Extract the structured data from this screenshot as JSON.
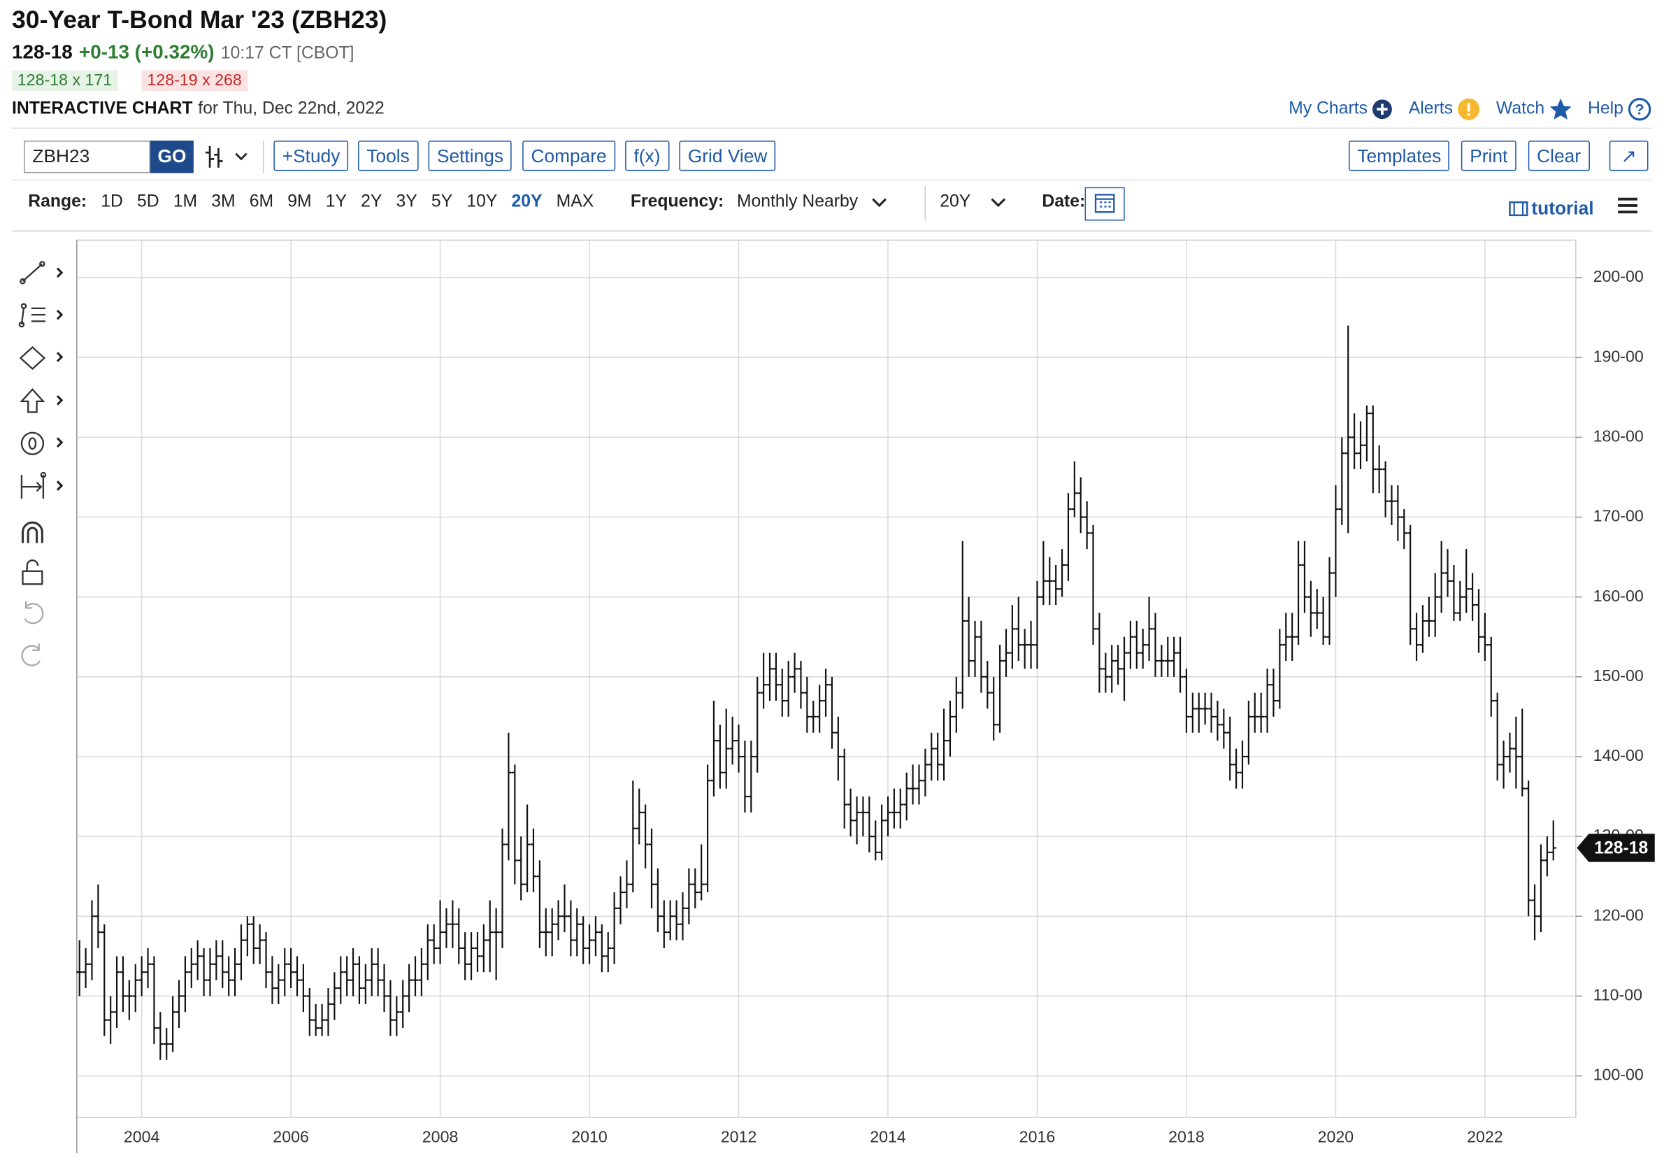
{
  "header": {
    "title": "30-Year T-Bond Mar '23 (ZBH23)",
    "last": "128-18",
    "change": "+0-13 (+0.32%)",
    "time": "10:17 CT [CBOT]",
    "bid": "128-18 x 171",
    "ask": "128-19 x 268",
    "chart_label": "INTERACTIVE CHART",
    "chart_date": "for Thu, Dec 22nd, 2022"
  },
  "links": [
    "My Charts",
    "Alerts",
    "Watch",
    "Help"
  ],
  "toolbar": {
    "symbol": "ZBH23",
    "go": "GO",
    "left_buttons": [
      "+Study",
      "Tools",
      "Settings",
      "Compare",
      "f(x)",
      "Grid View"
    ],
    "right_buttons": [
      "Templates",
      "Print",
      "Clear"
    ]
  },
  "range_bar": {
    "range_label": "Range:",
    "ranges": [
      "1D",
      "5D",
      "1M",
      "3M",
      "6M",
      "9M",
      "1Y",
      "2Y",
      "3Y",
      "5Y",
      "10Y",
      "20Y",
      "MAX"
    ],
    "active_range": "20Y",
    "frequency_label": "Frequency:",
    "frequency": "Monthly Nearby",
    "period": "20Y",
    "date_label": "Date:",
    "tutorial": "tutorial"
  },
  "chart_data": {
    "type": "ohlc",
    "color": "#111111",
    "grid": true,
    "ylim": [
      94.8,
      204.7
    ],
    "yticks": [
      {
        "value": 100,
        "label": "100-00"
      },
      {
        "value": 110,
        "label": "110-00"
      },
      {
        "value": 120,
        "label": "120-00"
      },
      {
        "value": 130,
        "label": "130-00"
      },
      {
        "value": 140,
        "label": "140-00"
      },
      {
        "value": 150,
        "label": "150-00"
      },
      {
        "value": 160,
        "label": "160-00"
      },
      {
        "value": 170,
        "label": "170-00"
      },
      {
        "value": 180,
        "label": "180-00"
      },
      {
        "value": 190,
        "label": "190-00"
      },
      {
        "value": 200,
        "label": "200-00"
      }
    ],
    "last_label": "128-18",
    "categories": [
      null,
      null,
      null,
      null,
      null,
      null,
      null,
      null,
      null,
      null,
      "2004",
      null,
      null,
      null,
      null,
      null,
      null,
      null,
      null,
      null,
      null,
      null,
      null,
      null,
      null,
      null,
      null,
      null,
      null,
      null,
      null,
      null,
      null,
      null,
      "2006",
      null,
      null,
      null,
      null,
      null,
      null,
      null,
      null,
      null,
      null,
      null,
      null,
      null,
      null,
      null,
      null,
      null,
      null,
      null,
      null,
      null,
      null,
      null,
      "2008",
      null,
      null,
      null,
      null,
      null,
      null,
      null,
      null,
      null,
      null,
      null,
      null,
      null,
      null,
      null,
      null,
      null,
      null,
      null,
      null,
      null,
      null,
      null,
      "2010",
      null,
      null,
      null,
      null,
      null,
      null,
      null,
      null,
      null,
      null,
      null,
      null,
      null,
      null,
      null,
      null,
      null,
      null,
      null,
      null,
      null,
      null,
      null,
      "2012",
      null,
      null,
      null,
      null,
      null,
      null,
      null,
      null,
      null,
      null,
      null,
      null,
      null,
      null,
      null,
      null,
      null,
      null,
      null,
      null,
      null,
      null,
      null,
      "2014",
      null,
      null,
      null,
      null,
      null,
      null,
      null,
      null,
      null,
      null,
      null,
      null,
      null,
      null,
      null,
      null,
      null,
      null,
      null,
      null,
      null,
      null,
      null,
      "2016",
      null,
      null,
      null,
      null,
      null,
      null,
      null,
      null,
      null,
      null,
      null,
      null,
      null,
      null,
      null,
      null,
      null,
      null,
      null,
      null,
      null,
      null,
      null,
      "2018",
      null,
      null,
      null,
      null,
      null,
      null,
      null,
      null,
      null,
      null,
      null,
      null,
      null,
      null,
      null,
      null,
      null,
      null,
      null,
      null,
      null,
      null,
      null,
      "2020",
      null,
      null,
      null,
      null,
      null,
      null,
      null,
      null,
      null,
      null,
      null,
      null,
      null,
      null,
      null,
      null,
      null,
      null,
      null,
      null,
      null,
      null,
      null,
      "2022",
      null,
      null,
      null,
      null,
      null,
      null,
      null,
      null,
      null,
      null,
      null
    ],
    "open": [
      113,
      113,
      114,
      120,
      118,
      107,
      108,
      113,
      110,
      110,
      112,
      113,
      114,
      106,
      104,
      104,
      108,
      110,
      113,
      114,
      115,
      112,
      114,
      115,
      113,
      112,
      114,
      117,
      119,
      116,
      117,
      113,
      111,
      112,
      114,
      113,
      112,
      110,
      107,
      106,
      107,
      109,
      111,
      113,
      112,
      114,
      111,
      112,
      114,
      112,
      110,
      107,
      108,
      110,
      112,
      112,
      114,
      117,
      116,
      118,
      119,
      119,
      116,
      114,
      116,
      115,
      117,
      118,
      118,
      129,
      138,
      127,
      124,
      129,
      125,
      118,
      118,
      119,
      120,
      120,
      117,
      119,
      116,
      117,
      118,
      115,
      116,
      121,
      123,
      124,
      131,
      133,
      129,
      124,
      120,
      118,
      120,
      119,
      121,
      124,
      123,
      124,
      137,
      142,
      138,
      141,
      142,
      140,
      135,
      140,
      148,
      149,
      151,
      149,
      147,
      150,
      151,
      148,
      145,
      145,
      147,
      149,
      143,
      140,
      134,
      132,
      133,
      133,
      130,
      128,
      132,
      133,
      133,
      134,
      136,
      136,
      137,
      139,
      141,
      139,
      142,
      145,
      148,
      157,
      152,
      155,
      150,
      148,
      144,
      152,
      153,
      156,
      154,
      154,
      154,
      160,
      162,
      162,
      161,
      164,
      171,
      173,
      170,
      168,
      156,
      151,
      150,
      152,
      151,
      153,
      155,
      153,
      154,
      156,
      152,
      152,
      152,
      153,
      150,
      145,
      146,
      146,
      146,
      145,
      144,
      143,
      139,
      138,
      140,
      145,
      145,
      145,
      149,
      147,
      154,
      155,
      155,
      164,
      160,
      158,
      158,
      155,
      163,
      171,
      178,
      180,
      178,
      179,
      183,
      176,
      176,
      172,
      172,
      170,
      168,
      156,
      154,
      157,
      157,
      160,
      163,
      162,
      158,
      160,
      161,
      159,
      155,
      154,
      147,
      139,
      140,
      141,
      140,
      136,
      122,
      120,
      127,
      128
    ],
    "high": [
      117,
      116,
      122,
      124,
      119,
      110,
      115,
      115,
      112,
      114,
      115,
      116,
      115,
      108,
      106,
      110,
      112,
      115,
      116,
      117,
      116,
      116,
      117,
      117,
      115,
      116,
      119,
      120,
      120,
      119,
      118,
      115,
      114,
      116,
      116,
      115,
      114,
      111,
      109,
      109,
      111,
      113,
      115,
      115,
      116,
      115,
      114,
      116,
      116,
      114,
      112,
      110,
      112,
      114,
      115,
      116,
      119,
      119,
      122,
      121,
      122,
      121,
      118,
      118,
      118,
      119,
      122,
      121,
      131,
      143,
      139,
      130,
      134,
      131,
      127,
      121,
      121,
      122,
      124,
      122,
      121,
      120,
      119,
      120,
      119,
      118,
      123,
      125,
      127,
      137,
      136,
      134,
      131,
      126,
      122,
      122,
      122,
      123,
      126,
      126,
      129,
      139,
      147,
      144,
      146,
      145,
      144,
      142,
      142,
      150,
      153,
      153,
      153,
      151,
      152,
      153,
      152,
      150,
      147,
      149,
      151,
      150,
      145,
      141,
      136,
      135,
      135,
      135,
      132,
      134,
      135,
      136,
      136,
      138,
      139,
      139,
      141,
      143,
      143,
      146,
      147,
      150,
      167,
      160,
      157,
      157,
      152,
      150,
      154,
      156,
      159,
      160,
      156,
      157,
      162,
      167,
      165,
      164,
      166,
      173,
      177,
      175,
      172,
      169,
      158,
      153,
      154,
      154,
      155,
      157,
      157,
      156,
      160,
      158,
      154,
      155,
      155,
      155,
      151,
      148,
      148,
      148,
      148,
      147,
      146,
      145,
      141,
      142,
      147,
      148,
      148,
      151,
      151,
      156,
      158,
      158,
      167,
      167,
      162,
      161,
      160,
      165,
      174,
      180,
      194,
      183,
      182,
      184,
      184,
      179,
      177,
      174,
      174,
      171,
      169,
      158,
      159,
      160,
      163,
      167,
      166,
      164,
      162,
      166,
      163,
      161,
      158,
      155,
      148,
      142,
      143,
      145,
      146,
      137,
      124,
      129,
      130,
      132
    ],
    "low": [
      110,
      111,
      112,
      116,
      105,
      104,
      106,
      108,
      107,
      108,
      110,
      111,
      104,
      102,
      102,
      103,
      106,
      108,
      111,
      112,
      110,
      110,
      112,
      111,
      110,
      110,
      112,
      115,
      114,
      114,
      111,
      109,
      109,
      110,
      111,
      110,
      108,
      105,
      105,
      105,
      105,
      107,
      109,
      110,
      110,
      109,
      109,
      110,
      110,
      108,
      105,
      105,
      106,
      108,
      110,
      110,
      112,
      114,
      114,
      116,
      116,
      114,
      112,
      112,
      113,
      113,
      113,
      112,
      116,
      127,
      124,
      122,
      123,
      123,
      116,
      115,
      115,
      117,
      118,
      115,
      115,
      114,
      114,
      115,
      113,
      113,
      114,
      119,
      121,
      123,
      129,
      126,
      121,
      118,
      116,
      117,
      117,
      117,
      119,
      121,
      122,
      123,
      135,
      136,
      136,
      139,
      138,
      133,
      133,
      138,
      146,
      147,
      147,
      145,
      145,
      148,
      146,
      143,
      143,
      143,
      145,
      141,
      137,
      131,
      130,
      129,
      130,
      128,
      127,
      127,
      130,
      131,
      131,
      132,
      134,
      134,
      135,
      137,
      137,
      137,
      140,
      143,
      146,
      150,
      150,
      148,
      146,
      142,
      143,
      150,
      151,
      152,
      151,
      151,
      151,
      159,
      159,
      159,
      160,
      162,
      170,
      168,
      166,
      154,
      148,
      148,
      148,
      149,
      147,
      151,
      151,
      151,
      152,
      150,
      150,
      150,
      150,
      148,
      143,
      143,
      143,
      144,
      143,
      142,
      141,
      137,
      136,
      136,
      139,
      143,
      143,
      143,
      145,
      146,
      152,
      152,
      154,
      158,
      155,
      156,
      154,
      154,
      160,
      169,
      168,
      176,
      176,
      177,
      173,
      173,
      170,
      169,
      167,
      166,
      154,
      152,
      153,
      155,
      155,
      158,
      160,
      157,
      157,
      158,
      157,
      153,
      152,
      145,
      137,
      136,
      138,
      136,
      135,
      120,
      117,
      118,
      125,
      127
    ],
    "close": [
      113,
      114,
      120,
      118,
      107,
      108,
      113,
      110,
      110,
      112,
      113,
      114,
      106,
      104,
      104,
      108,
      110,
      113,
      114,
      115,
      112,
      114,
      115,
      113,
      112,
      114,
      117,
      119,
      116,
      117,
      113,
      111,
      112,
      114,
      113,
      112,
      110,
      107,
      106,
      107,
      109,
      111,
      113,
      112,
      114,
      111,
      112,
      114,
      112,
      110,
      107,
      108,
      110,
      112,
      112,
      114,
      117,
      116,
      118,
      119,
      119,
      116,
      114,
      116,
      115,
      117,
      118,
      118,
      129,
      138,
      127,
      124,
      129,
      125,
      118,
      118,
      119,
      120,
      120,
      117,
      119,
      116,
      117,
      118,
      115,
      116,
      121,
      123,
      124,
      131,
      133,
      129,
      124,
      120,
      118,
      120,
      119,
      121,
      124,
      123,
      124,
      137,
      142,
      138,
      141,
      142,
      140,
      135,
      140,
      148,
      149,
      151,
      149,
      147,
      150,
      151,
      148,
      145,
      145,
      147,
      149,
      143,
      140,
      134,
      132,
      133,
      133,
      130,
      128,
      132,
      133,
      133,
      134,
      136,
      136,
      137,
      139,
      141,
      139,
      142,
      145,
      148,
      157,
      152,
      155,
      150,
      148,
      144,
      152,
      153,
      156,
      154,
      154,
      154,
      160,
      162,
      162,
      161,
      164,
      171,
      173,
      170,
      168,
      156,
      151,
      150,
      152,
      151,
      153,
      155,
      153,
      154,
      156,
      152,
      152,
      152,
      153,
      150,
      145,
      146,
      146,
      146,
      145,
      144,
      143,
      139,
      138,
      140,
      145,
      145,
      145,
      149,
      147,
      154,
      155,
      155,
      164,
      160,
      158,
      158,
      155,
      163,
      171,
      178,
      180,
      178,
      179,
      183,
      176,
      176,
      172,
      172,
      170,
      168,
      156,
      154,
      157,
      157,
      160,
      163,
      162,
      158,
      160,
      161,
      159,
      155,
      154,
      147,
      139,
      140,
      141,
      140,
      136,
      122,
      120,
      127,
      128,
      128.5625
    ]
  }
}
